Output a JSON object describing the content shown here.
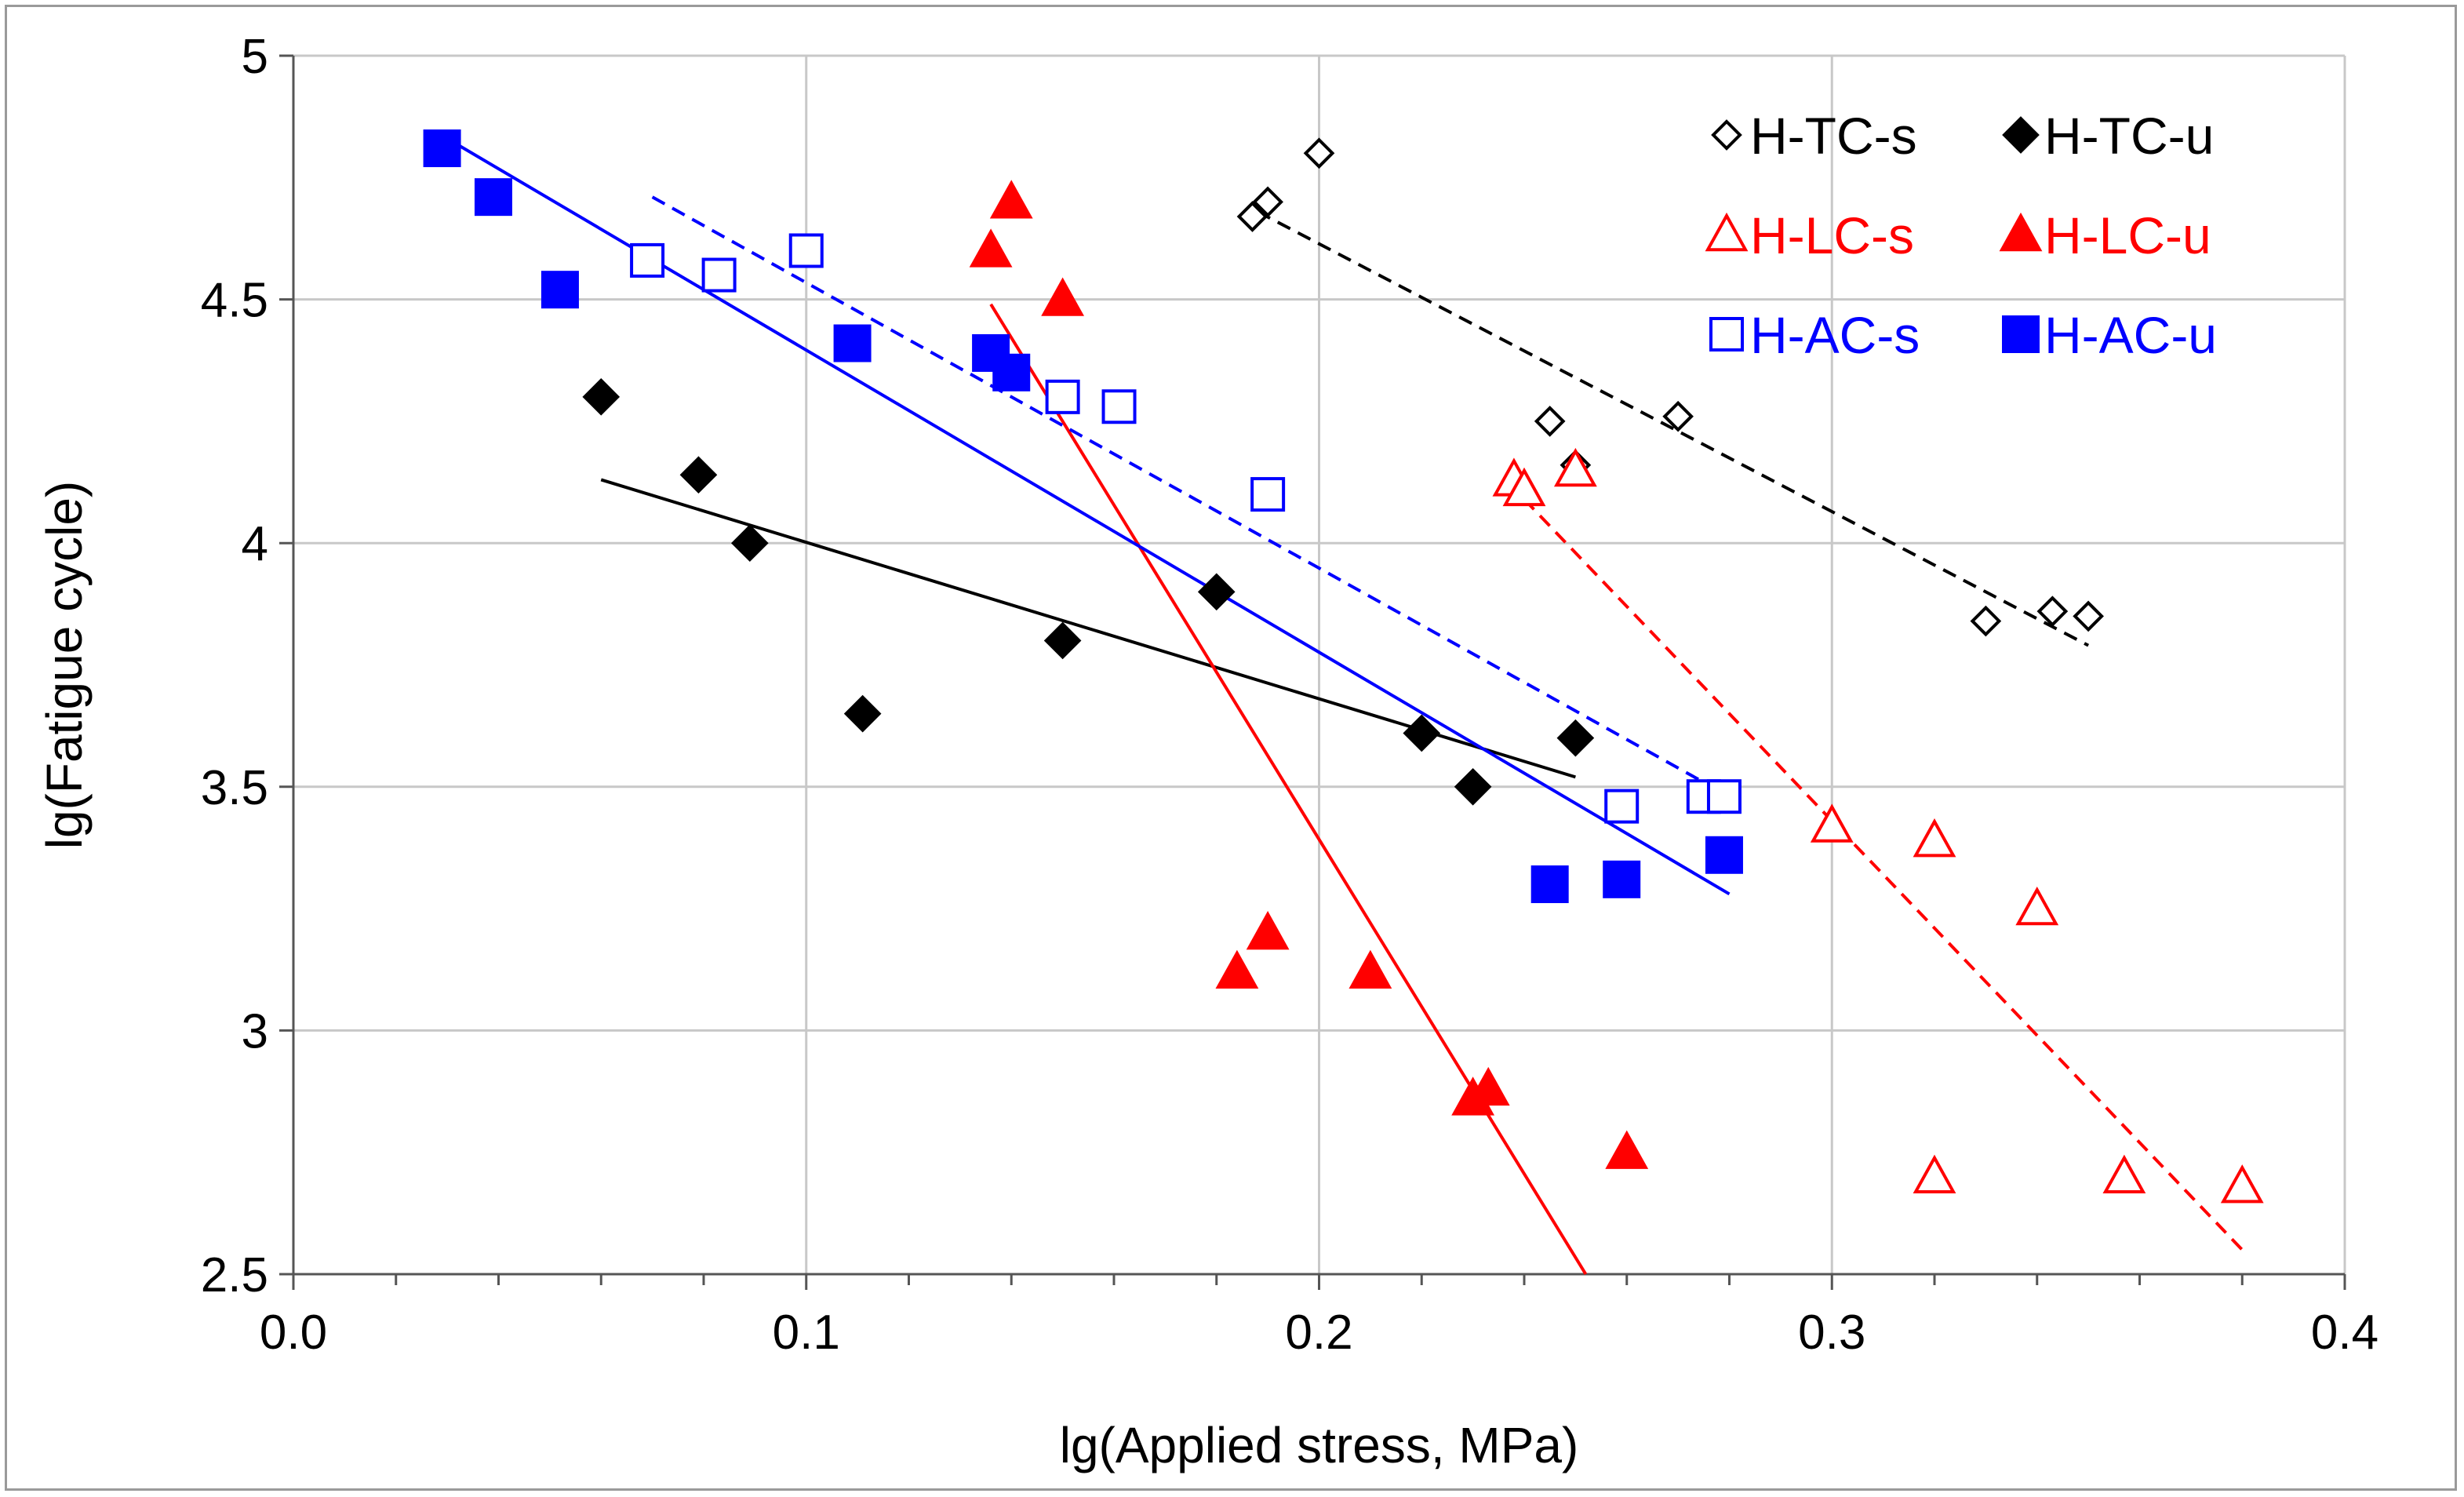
{
  "chart_data": {
    "type": "scatter",
    "xlabel": "lg(Applied stress, MPa)",
    "ylabel": "lg(Fatigue cycle)",
    "xlim": [
      0.0,
      0.4
    ],
    "ylim": [
      2.5,
      5.0
    ],
    "grid": true,
    "legend_position": "top-right",
    "x_ticks": [
      0.0,
      0.1,
      0.2,
      0.3,
      0.4
    ],
    "x_tick_labels": [
      "0.0",
      "0.1",
      "0.2",
      "0.3",
      "0.4"
    ],
    "y_ticks": [
      2.5,
      3.0,
      3.5,
      4.0,
      4.5,
      5.0
    ],
    "y_tick_labels": [
      "2.5",
      "3",
      "3.5",
      "4",
      "4.5",
      "5"
    ],
    "series": [
      {
        "name": "H-TC-s",
        "marker": "diamond-open",
        "color": "#000000",
        "points": [
          [
            0.187,
            4.67
          ],
          [
            0.19,
            4.7
          ],
          [
            0.2,
            4.8
          ],
          [
            0.245,
            4.25
          ],
          [
            0.25,
            4.16
          ],
          [
            0.27,
            4.26
          ],
          [
            0.33,
            3.84
          ],
          [
            0.343,
            3.86
          ],
          [
            0.35,
            3.85
          ]
        ],
        "trend": {
          "style": "dashed",
          "from": [
            0.188,
            4.68
          ],
          "to": [
            0.35,
            3.79
          ]
        }
      },
      {
        "name": "H-TC-u",
        "marker": "diamond-filled",
        "color": "#000000",
        "points": [
          [
            0.06,
            4.3
          ],
          [
            0.079,
            4.14
          ],
          [
            0.089,
            4.0
          ],
          [
            0.111,
            3.65
          ],
          [
            0.15,
            3.8
          ],
          [
            0.18,
            3.9
          ],
          [
            0.22,
            3.61
          ],
          [
            0.23,
            3.5
          ],
          [
            0.25,
            3.6
          ]
        ],
        "trend": {
          "style": "solid",
          "from": [
            0.06,
            4.13
          ],
          "to": [
            0.25,
            3.52
          ]
        }
      },
      {
        "name": "H-LC-s",
        "marker": "triangle-open",
        "color": "#ff0000",
        "points": [
          [
            0.238,
            4.13
          ],
          [
            0.24,
            4.11
          ],
          [
            0.25,
            4.15
          ],
          [
            0.3,
            3.42
          ],
          [
            0.32,
            3.39
          ],
          [
            0.34,
            3.25
          ],
          [
            0.32,
            2.7
          ],
          [
            0.357,
            2.7
          ],
          [
            0.38,
            2.68
          ]
        ],
        "trend": {
          "style": "dashed",
          "from": [
            0.24,
            4.09
          ],
          "to": [
            0.38,
            2.55
          ]
        }
      },
      {
        "name": "H-LC-u",
        "marker": "triangle-filled",
        "color": "#ff0000",
        "points": [
          [
            0.136,
            4.6
          ],
          [
            0.14,
            4.7
          ],
          [
            0.15,
            4.5
          ],
          [
            0.184,
            3.12
          ],
          [
            0.19,
            3.2
          ],
          [
            0.21,
            3.12
          ],
          [
            0.23,
            2.86
          ],
          [
            0.233,
            2.88
          ],
          [
            0.26,
            2.75
          ]
        ],
        "trend": {
          "style": "solid",
          "from": [
            0.136,
            4.49
          ],
          "to": [
            0.252,
            2.5
          ]
        }
      },
      {
        "name": "H-AC-s",
        "marker": "square-open",
        "color": "#0000ff",
        "points": [
          [
            0.069,
            4.58
          ],
          [
            0.083,
            4.55
          ],
          [
            0.1,
            4.6
          ],
          [
            0.15,
            4.3
          ],
          [
            0.161,
            4.28
          ],
          [
            0.19,
            4.1
          ],
          [
            0.259,
            3.46
          ],
          [
            0.275,
            3.48
          ],
          [
            0.279,
            3.48
          ]
        ],
        "trend": {
          "style": "dashed",
          "from": [
            0.07,
            4.71
          ],
          "to": [
            0.28,
            3.48
          ]
        }
      },
      {
        "name": "H-AC-u",
        "marker": "square-filled",
        "color": "#0000ff",
        "points": [
          [
            0.029,
            4.81
          ],
          [
            0.039,
            4.71
          ],
          [
            0.052,
            4.52
          ],
          [
            0.109,
            4.41
          ],
          [
            0.136,
            4.39
          ],
          [
            0.14,
            4.35
          ],
          [
            0.245,
            3.3
          ],
          [
            0.259,
            3.31
          ],
          [
            0.279,
            3.36
          ]
        ],
        "trend": {
          "style": "solid",
          "from": [
            0.03,
            4.83
          ],
          "to": [
            0.28,
            3.28
          ]
        }
      }
    ]
  }
}
